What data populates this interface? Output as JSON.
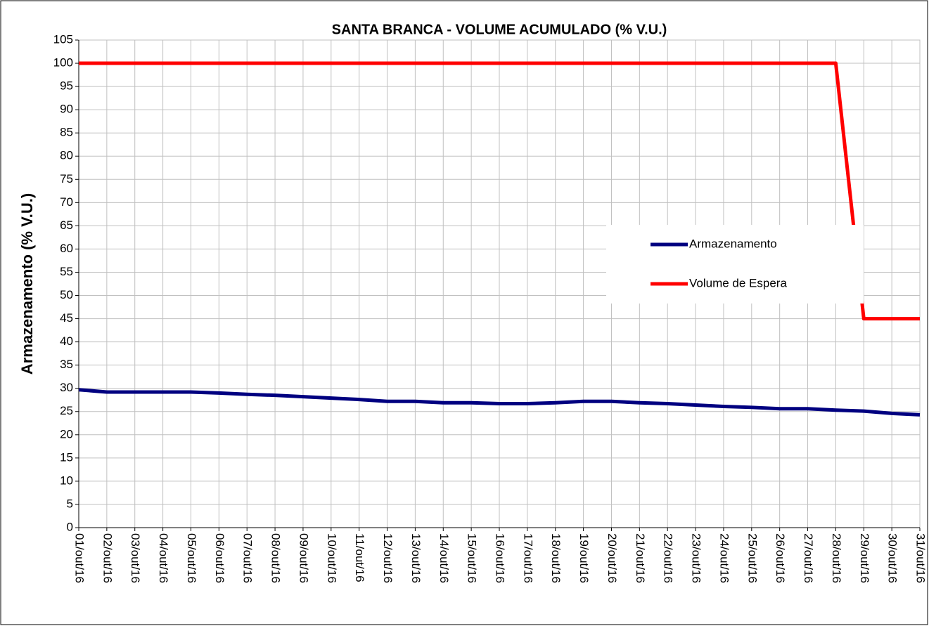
{
  "chart_data": {
    "type": "line",
    "title": "SANTA BRANCA - VOLUME ACUMULADO (% V.U.)",
    "y_label": "Armazenamento (% V.U.)",
    "categories": [
      "01/out/16",
      "02/out/16",
      "03/out/16",
      "04/out/16",
      "05/out/16",
      "06/out/16",
      "07/out/16",
      "08/out/16",
      "09/out/16",
      "10/out/16",
      "11/out/16",
      "12/out/16",
      "13/out/16",
      "14/out/16",
      "15/out/16",
      "16/out/16",
      "17/out/16",
      "18/out/16",
      "19/out/16",
      "20/out/16",
      "21/out/16",
      "22/out/16",
      "23/out/16",
      "24/out/16",
      "25/out/16",
      "26/out/16",
      "27/out/16",
      "28/out/16",
      "29/out/16",
      "30/out/16",
      "31/out/16"
    ],
    "series": [
      {
        "name": "Armazenamento",
        "color": "#000080",
        "values": [
          29.7,
          29.2,
          29.2,
          29.2,
          29.2,
          29.0,
          28.7,
          28.5,
          28.2,
          27.9,
          27.6,
          27.2,
          27.2,
          26.9,
          26.9,
          26.7,
          26.7,
          26.9,
          27.2,
          27.2,
          26.9,
          26.7,
          26.4,
          26.1,
          25.9,
          25.6,
          25.6,
          25.3,
          25.1,
          24.6,
          24.3
        ]
      },
      {
        "name": "Volume de Espera",
        "color": "#ff0000",
        "values": [
          100,
          100,
          100,
          100,
          100,
          100,
          100,
          100,
          100,
          100,
          100,
          100,
          100,
          100,
          100,
          100,
          100,
          100,
          100,
          100,
          100,
          100,
          100,
          100,
          100,
          100,
          100,
          100,
          45,
          45,
          45
        ]
      }
    ],
    "ylim": [
      0,
      105
    ],
    "yticks": [
      0,
      5,
      10,
      15,
      20,
      25,
      30,
      35,
      40,
      45,
      50,
      55,
      60,
      65,
      70,
      75,
      80,
      85,
      90,
      95,
      100,
      105
    ],
    "grid": true,
    "legend": "right"
  }
}
